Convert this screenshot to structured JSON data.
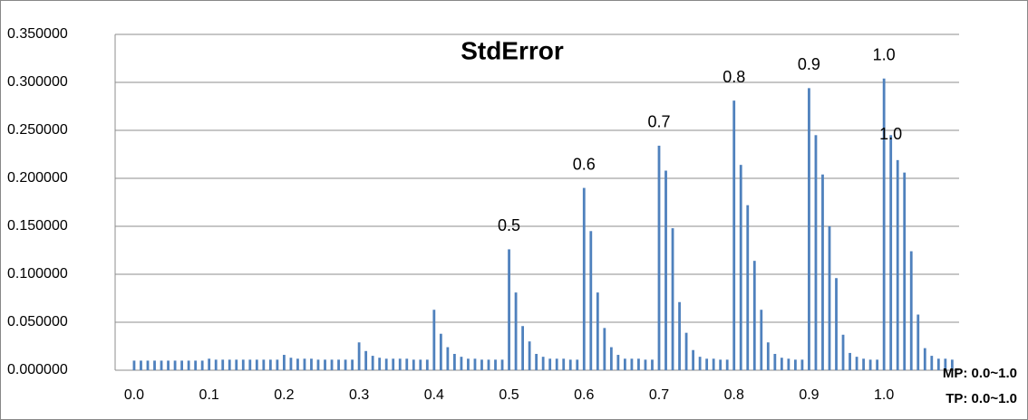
{
  "chart_data": {
    "type": "bar",
    "title": "StdError",
    "categories": [
      "0.0",
      null,
      null,
      null,
      null,
      null,
      null,
      null,
      null,
      null,
      null,
      "0.1",
      null,
      null,
      null,
      null,
      null,
      null,
      null,
      null,
      null,
      null,
      "0.2",
      null,
      null,
      null,
      null,
      null,
      null,
      null,
      null,
      null,
      null,
      "0.3",
      null,
      null,
      null,
      null,
      null,
      null,
      null,
      null,
      null,
      null,
      "0.4",
      null,
      null,
      null,
      null,
      null,
      null,
      null,
      null,
      null,
      null,
      "0.5",
      null,
      null,
      null,
      null,
      null,
      null,
      null,
      null,
      null,
      null,
      "0.6",
      null,
      null,
      null,
      null,
      null,
      null,
      null,
      null,
      null,
      null,
      "0.7",
      null,
      null,
      null,
      null,
      null,
      null,
      null,
      null,
      null,
      null,
      "0.8",
      null,
      null,
      null,
      null,
      null,
      null,
      null,
      null,
      null,
      null,
      "0.9",
      null,
      null,
      null,
      null,
      null,
      null,
      null,
      null,
      null,
      null,
      "1.0",
      null,
      null,
      null,
      null,
      null,
      null,
      null,
      null,
      null,
      null
    ],
    "values": [
      0.01,
      0.01,
      0.01,
      0.01,
      0.01,
      0.01,
      0.01,
      0.01,
      0.01,
      0.01,
      0.01,
      0.012,
      0.011,
      0.011,
      0.011,
      0.011,
      0.011,
      0.011,
      0.011,
      0.011,
      0.011,
      0.011,
      0.016,
      0.013,
      0.012,
      0.012,
      0.012,
      0.011,
      0.011,
      0.011,
      0.011,
      0.011,
      0.011,
      0.029,
      0.02,
      0.015,
      0.013,
      0.012,
      0.012,
      0.012,
      0.012,
      0.011,
      0.011,
      0.011,
      0.063,
      0.038,
      0.024,
      0.017,
      0.014,
      0.012,
      0.012,
      0.011,
      0.011,
      0.011,
      0.011,
      0.126,
      0.081,
      0.046,
      0.03,
      0.017,
      0.014,
      0.012,
      0.012,
      0.012,
      0.011,
      0.011,
      0.19,
      0.145,
      0.081,
      0.044,
      0.024,
      0.016,
      0.012,
      0.012,
      0.012,
      0.011,
      0.011,
      0.234,
      0.208,
      0.148,
      0.071,
      0.039,
      0.021,
      0.014,
      0.012,
      0.012,
      0.011,
      0.011,
      0.281,
      0.214,
      0.172,
      0.114,
      0.063,
      0.029,
      0.017,
      0.013,
      0.012,
      0.011,
      0.011,
      0.294,
      0.245,
      0.204,
      0.15,
      0.096,
      0.037,
      0.018,
      0.014,
      0.012,
      0.011,
      0.011,
      0.304,
      0.245,
      0.219,
      0.206,
      0.124,
      0.058,
      0.023,
      0.015,
      0.012,
      0.012,
      0.011
    ],
    "color": "#4f81bd",
    "ylim": [
      0,
      0.35
    ],
    "yticks": [
      {
        "value": 0,
        "label": "0.000000"
      },
      {
        "value": 0.05,
        "label": "0.050000"
      },
      {
        "value": 0.1,
        "label": "0.100000"
      },
      {
        "value": 0.15,
        "label": "0.150000"
      },
      {
        "value": 0.2,
        "label": "0.200000"
      },
      {
        "value": 0.25,
        "label": "0.250000"
      },
      {
        "value": 0.3,
        "label": "0.300000"
      },
      {
        "value": 0.35,
        "label": "0.350000"
      }
    ],
    "grid": true,
    "annotations": [
      "0.5",
      "0.6",
      "0.7",
      "0.8",
      "0.9",
      "1.0",
      "1.0"
    ],
    "notes": [
      "MP: 0.0~1.0",
      "TP: 0.0~1.0"
    ]
  }
}
